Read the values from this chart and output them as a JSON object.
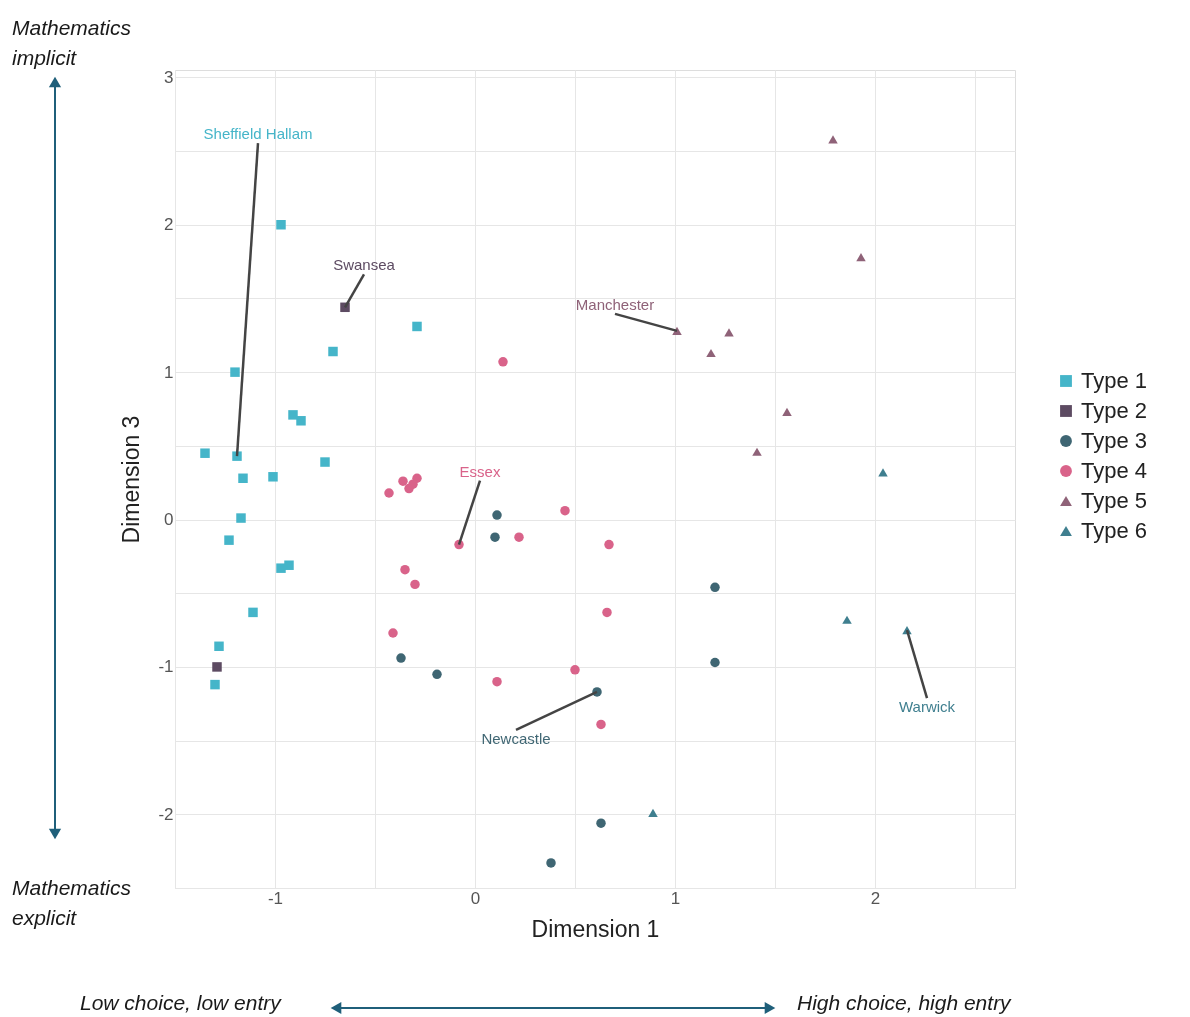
{
  "chart_data": {
    "type": "scatter",
    "xlabel": "Dimension 1",
    "ylabel": "Dimension 3",
    "xlim": [
      -1.5,
      2.7
    ],
    "ylim": [
      -2.5,
      3.05
    ],
    "xticks": [
      {
        "value": -1.5,
        "label": null
      },
      -1,
      {
        "value": -0.5,
        "label": null
      },
      0,
      {
        "value": 0.5,
        "label": null
      },
      1,
      {
        "value": 1.5,
        "label": null
      },
      2,
      {
        "value": 2.5,
        "label": null
      }
    ],
    "yticks": [
      {
        "value": -2.5,
        "label": null
      },
      -2,
      {
        "value": -1.5,
        "label": null
      },
      -1,
      {
        "value": -0.5,
        "label": null
      },
      0,
      {
        "value": 0.5,
        "label": null
      },
      1,
      {
        "value": 1.5,
        "label": null
      },
      2,
      {
        "value": 2.5,
        "label": null
      },
      3
    ],
    "grid": true,
    "legend": "right",
    "series": [
      {
        "name": "Type 1",
        "marker": "square",
        "color": "#45b5c9",
        "x": [
          -0.97,
          -0.29,
          -0.71,
          -1.2,
          -0.91,
          -0.87,
          -1.35,
          -1.19,
          -0.75,
          -1.16,
          -1.01,
          -1.17,
          -1.23,
          -0.97,
          -0.93,
          -1.11,
          -1.28,
          -1.3
        ],
        "values": [
          2.0,
          1.31,
          1.14,
          1.0,
          0.71,
          0.67,
          0.45,
          0.43,
          0.39,
          0.28,
          0.29,
          0.01,
          -0.14,
          -0.33,
          -0.31,
          -0.63,
          -0.86,
          -1.12
        ]
      },
      {
        "name": "Type 2",
        "marker": "square",
        "color": "#5d4b62",
        "x": [
          -0.65,
          -1.29
        ],
        "values": [
          1.44,
          -1.0
        ]
      },
      {
        "name": "Type 3",
        "marker": "circle",
        "color": "#3f6673",
        "x": [
          0.11,
          0.1,
          -0.37,
          -0.19,
          0.61,
          1.2,
          1.2,
          0.63,
          0.38
        ],
        "values": [
          0.03,
          -0.12,
          -0.94,
          -1.05,
          -1.17,
          -0.46,
          -0.97,
          -2.06,
          -2.33
        ]
      },
      {
        "name": "Type 4",
        "marker": "circle",
        "color": "#d9638a",
        "x": [
          0.14,
          -0.43,
          -0.36,
          -0.29,
          -0.33,
          -0.31,
          -0.08,
          -0.35,
          -0.3,
          -0.41,
          0.11,
          0.22,
          0.45,
          0.67,
          0.66,
          0.5,
          0.63
        ],
        "values": [
          1.07,
          0.18,
          0.26,
          0.28,
          0.21,
          0.24,
          -0.17,
          -0.34,
          -0.44,
          -0.77,
          -1.1,
          -0.12,
          0.06,
          -0.17,
          -0.63,
          -1.02,
          -1.39
        ]
      },
      {
        "name": "Type 5",
        "marker": "triangle",
        "color": "#8f6278",
        "x": [
          1.79,
          1.93,
          1.01,
          1.27,
          1.18,
          1.56,
          1.41
        ],
        "values": [
          2.58,
          1.78,
          1.28,
          1.27,
          1.13,
          0.73,
          0.46
        ]
      },
      {
        "name": "Type 6",
        "marker": "triangle",
        "color": "#3f7f8f",
        "x": [
          2.04,
          1.86,
          2.16,
          0.89
        ],
        "values": [
          0.32,
          -0.68,
          -0.75,
          -1.99
        ]
      }
    ],
    "annotations": [
      {
        "text": "Sheffield Hallam",
        "x": -1.19,
        "y": 0.43
      },
      {
        "text": "Swansea",
        "x": -0.65,
        "y": 1.44
      },
      {
        "text": "Manchester",
        "x": 1.01,
        "y": 1.28
      },
      {
        "text": "Essex",
        "x": -0.08,
        "y": -0.17
      },
      {
        "text": "Newcastle",
        "x": 0.61,
        "y": -1.17
      },
      {
        "text": "Warwick",
        "x": 2.16,
        "y": -0.75
      },
      "Mathematics\nimplicit",
      "Mathematics\nexplicit",
      "Low choice, low entry",
      "High choice, high entry"
    ]
  }
}
